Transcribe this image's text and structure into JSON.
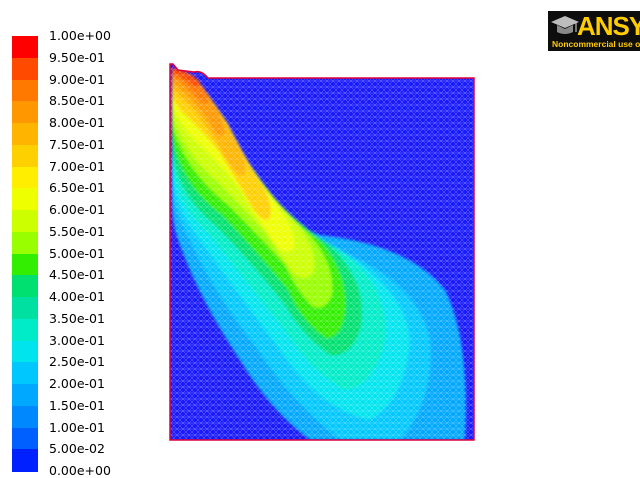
{
  "colormap": {
    "labels": [
      "1.00e+00",
      "9.50e-01",
      "9.00e-01",
      "8.50e-01",
      "8.00e-01",
      "7.50e-01",
      "7.00e-01",
      "6.50e-01",
      "6.00e-01",
      "5.50e-01",
      "5.00e-01",
      "4.50e-01",
      "4.00e-01",
      "3.50e-01",
      "3.00e-01",
      "2.50e-01",
      "2.00e-01",
      "1.50e-01",
      "1.00e-01",
      "5.00e-02",
      "0.00e+00"
    ],
    "colors": [
      "#ff0000",
      "#ff4a00",
      "#ff7800",
      "#ff9800",
      "#ffb400",
      "#ffd000",
      "#ffee00",
      "#eeff00",
      "#ccff00",
      "#99ff00",
      "#33ee00",
      "#00e070",
      "#00e0a0",
      "#00ecc8",
      "#00e4ee",
      "#00c8ff",
      "#00a8ff",
      "#0088ff",
      "#0060ff",
      "#0020ff"
    ]
  },
  "logo": {
    "text": "ANSYS",
    "subtitle": "Noncommercial use only",
    "color": "#ffcc00"
  }
}
